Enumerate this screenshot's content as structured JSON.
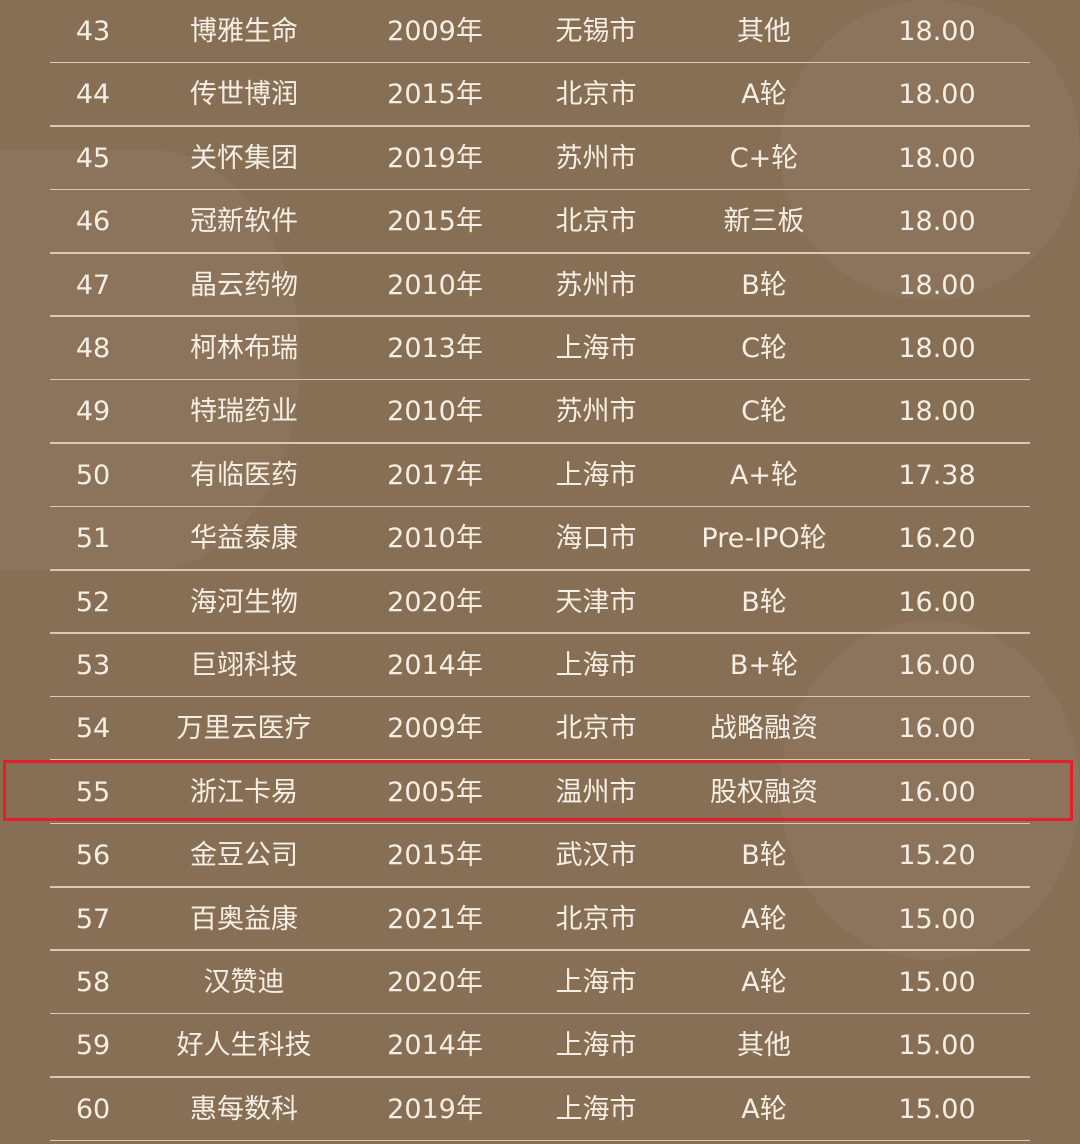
{
  "highlight_color": "#e3202a",
  "highlighted_rank": "55",
  "rows": [
    {
      "rank": "43",
      "name": "博雅生命",
      "year": "2009年",
      "city": "无锡市",
      "round": "其他",
      "value": "18.00"
    },
    {
      "rank": "44",
      "name": "传世博润",
      "year": "2015年",
      "city": "北京市",
      "round": "A轮",
      "value": "18.00"
    },
    {
      "rank": "45",
      "name": "关怀集团",
      "year": "2019年",
      "city": "苏州市",
      "round": "C+轮",
      "value": "18.00"
    },
    {
      "rank": "46",
      "name": "冠新软件",
      "year": "2015年",
      "city": "北京市",
      "round": "新三板",
      "value": "18.00"
    },
    {
      "rank": "47",
      "name": "晶云药物",
      "year": "2010年",
      "city": "苏州市",
      "round": "B轮",
      "value": "18.00"
    },
    {
      "rank": "48",
      "name": "柯林布瑞",
      "year": "2013年",
      "city": "上海市",
      "round": "C轮",
      "value": "18.00"
    },
    {
      "rank": "49",
      "name": "特瑞药业",
      "year": "2010年",
      "city": "苏州市",
      "round": "C轮",
      "value": "18.00"
    },
    {
      "rank": "50",
      "name": "有临医药",
      "year": "2017年",
      "city": "上海市",
      "round": "A+轮",
      "value": "17.38"
    },
    {
      "rank": "51",
      "name": "华益泰康",
      "year": "2010年",
      "city": "海口市",
      "round": "Pre-IPO轮",
      "value": "16.20"
    },
    {
      "rank": "52",
      "name": "海河生物",
      "year": "2020年",
      "city": "天津市",
      "round": "B轮",
      "value": "16.00"
    },
    {
      "rank": "53",
      "name": "巨翊科技",
      "year": "2014年",
      "city": "上海市",
      "round": "B+轮",
      "value": "16.00"
    },
    {
      "rank": "54",
      "name": "万里云医疗",
      "year": "2009年",
      "city": "北京市",
      "round": "战略融资",
      "value": "16.00"
    },
    {
      "rank": "55",
      "name": "浙江卡易",
      "year": "2005年",
      "city": "温州市",
      "round": "股权融资",
      "value": "16.00"
    },
    {
      "rank": "56",
      "name": "金豆公司",
      "year": "2015年",
      "city": "武汉市",
      "round": "B轮",
      "value": "15.20"
    },
    {
      "rank": "57",
      "name": "百奥益康",
      "year": "2021年",
      "city": "北京市",
      "round": "A轮",
      "value": "15.00"
    },
    {
      "rank": "58",
      "name": "汉赞迪",
      "year": "2020年",
      "city": "上海市",
      "round": "A轮",
      "value": "15.00"
    },
    {
      "rank": "59",
      "name": "好人生科技",
      "year": "2014年",
      "city": "上海市",
      "round": "其他",
      "value": "15.00"
    },
    {
      "rank": "60",
      "name": "惠每数科",
      "year": "2019年",
      "city": "上海市",
      "round": "A轮",
      "value": "15.00"
    }
  ]
}
